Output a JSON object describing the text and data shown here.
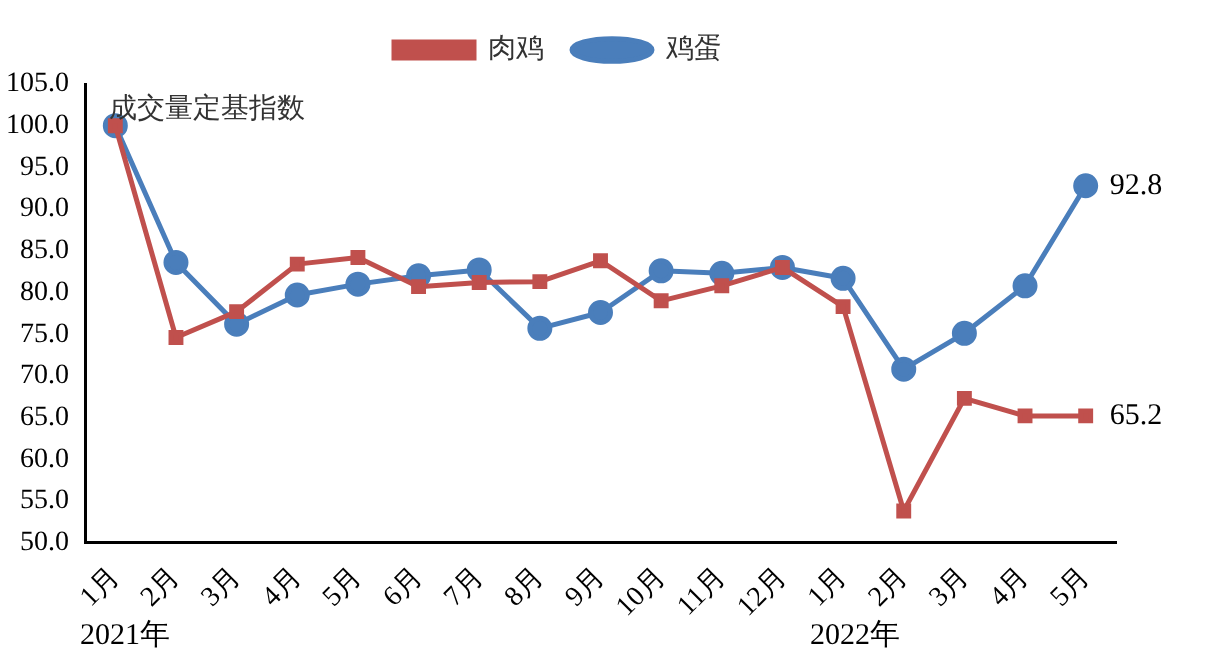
{
  "chart_data": {
    "type": "line",
    "title": "成交量定基指数",
    "categories": [
      "1月",
      "2月",
      "3月",
      "4月",
      "5月",
      "6月",
      "7月",
      "8月",
      "9月",
      "10月",
      "11月",
      "12月",
      "1月",
      "2月",
      "3月",
      "4月",
      "5月"
    ],
    "series": [
      {
        "name": "鸡蛋",
        "color": "#4a7ebb",
        "marker": "circle",
        "values": [
          100,
          83.6,
          76.2,
          79.7,
          81.0,
          82.0,
          82.7,
          75.7,
          77.6,
          82.6,
          82.3,
          83.0,
          81.7,
          70.8,
          75.1,
          80.8,
          92.8
        ],
        "value_labels": [
          null,
          null,
          null,
          null,
          null,
          null,
          null,
          null,
          null,
          null,
          null,
          null,
          null,
          null,
          null,
          null,
          "92.8"
        ]
      },
      {
        "name": "肉鸡",
        "color": "#c0504d",
        "marker": "square",
        "values": [
          100,
          74.6,
          77.7,
          83.4,
          84.2,
          80.7,
          81.2,
          81.3,
          83.8,
          79.0,
          80.8,
          83.0,
          78.3,
          53.8,
          67.3,
          65.2,
          65.2
        ],
        "value_labels": [
          null,
          null,
          null,
          null,
          null,
          null,
          null,
          null,
          null,
          null,
          null,
          null,
          null,
          null,
          null,
          null,
          "65.2"
        ]
      }
    ],
    "ylim": [
      50,
      105
    ],
    "yticks": [
      {
        "value": 50,
        "label": "50.0"
      },
      {
        "value": 55,
        "label": "55.0"
      },
      {
        "value": 60,
        "label": "60.0"
      },
      {
        "value": 65,
        "label": "65.0"
      },
      {
        "value": 70,
        "label": "70.0"
      },
      {
        "value": 75,
        "label": "75.0"
      },
      {
        "value": 80,
        "label": "80.0"
      },
      {
        "value": 85,
        "label": "85.0"
      },
      {
        "value": 90,
        "label": "90.0"
      },
      {
        "value": 95,
        "label": "95.0"
      },
      {
        "value": 100,
        "label": "100.0"
      },
      {
        "value": 105,
        "label": "105.0"
      }
    ],
    "grid": false,
    "legend": "top",
    "line_style": "solid",
    "annotations": [
      "2021年",
      "2022年"
    ]
  }
}
